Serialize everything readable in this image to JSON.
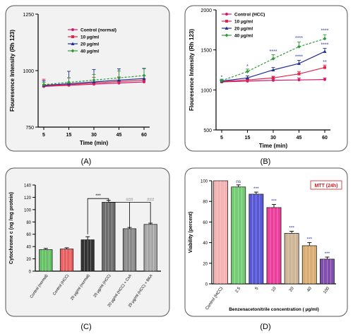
{
  "chart_data": [
    {
      "panel": "(A)",
      "type": "line",
      "title": "",
      "xlabel": "Time (min)",
      "ylabel": "Flouresence Intensity (Rh 123)",
      "x": [
        5,
        15,
        30,
        45,
        60
      ],
      "x_ticks": [
        "5",
        "15",
        "30",
        "45",
        "60"
      ],
      "y_ticks": [
        "750",
        "1000",
        "1250"
      ],
      "ylim": [
        750,
        1250
      ],
      "legend_position": "top-right",
      "series": [
        {
          "name": "Control (normal)",
          "color": "#d21b6e",
          "values": [
            930,
            935,
            940,
            945,
            950
          ],
          "err": [
            0,
            8,
            10,
            12,
            14
          ]
        },
        {
          "name": "10 µg/ml",
          "color": "#e0244a",
          "values": [
            932,
            938,
            945,
            952,
            958
          ],
          "err": [
            30,
            30,
            25,
            20,
            20
          ]
        },
        {
          "name": "20 µg/ml",
          "color": "#1f2f95",
          "values": [
            935,
            942,
            950,
            958,
            965
          ],
          "err": [
            20,
            55,
            55,
            50,
            45
          ]
        },
        {
          "name": "40 µg/ml",
          "color": "#2e9a3a",
          "values": [
            938,
            948,
            958,
            968,
            978
          ],
          "err": [
            10,
            20,
            25,
            30,
            30
          ]
        }
      ]
    },
    {
      "panel": "(B)",
      "type": "line",
      "title": "",
      "xlabel": "Time (min)",
      "ylabel": "Flouresence Intensity (Rh 123)",
      "x": [
        5,
        15,
        30,
        45,
        60
      ],
      "x_ticks": [
        "5",
        "15",
        "30",
        "45",
        "60"
      ],
      "y_ticks": [
        "500",
        "1000",
        "1500",
        "2000"
      ],
      "ylim": [
        500,
        2000
      ],
      "legend_position": "top-left",
      "series": [
        {
          "name": "Control (HCC)",
          "color": "#d21b6e",
          "values": [
            1100,
            1110,
            1120,
            1125,
            1130
          ],
          "err": [
            15,
            15,
            20,
            25,
            20
          ]
        },
        {
          "name": "10 µg/ml",
          "color": "#e0244a",
          "values": [
            1105,
            1125,
            1150,
            1200,
            1280
          ],
          "err": [
            15,
            15,
            20,
            30,
            30
          ]
        },
        {
          "name": "20 µg/ml",
          "color": "#1f2f95",
          "values": [
            1110,
            1150,
            1250,
            1330,
            1480
          ],
          "err": [
            15,
            25,
            30,
            40,
            40
          ]
        },
        {
          "name": "40 µg/ml",
          "color": "#2e9a3a",
          "values": [
            1115,
            1230,
            1390,
            1540,
            1640
          ],
          "err": [
            20,
            30,
            50,
            60,
            50
          ]
        }
      ],
      "annotations": [
        {
          "x": 5,
          "y": 1140,
          "text": "*"
        },
        {
          "x": 15,
          "y": 1275,
          "text": "*"
        },
        {
          "x": 30,
          "y": 1460,
          "text": "****"
        },
        {
          "x": 45,
          "y": 1630,
          "text": "****"
        },
        {
          "x": 45,
          "y": 1395,
          "text": "****"
        },
        {
          "x": 60,
          "y": 1720,
          "text": "****"
        },
        {
          "x": 60,
          "y": 1545,
          "text": "****"
        },
        {
          "x": 60,
          "y": 1330,
          "text": "**"
        }
      ]
    },
    {
      "panel": "(C)",
      "type": "bar",
      "title": "",
      "xlabel": "",
      "ylabel": "Cytochrome c (ng /mg protein)",
      "categories": [
        "Control (normal)",
        "Control (HCC)",
        "20 µg/ml (normal)",
        "20 µg/ml (HCC)",
        "20 µg/ml (HCC) + CsA",
        "20 µg/ml (HCC) + BKA"
      ],
      "values": [
        35,
        36,
        51,
        112,
        69,
        76
      ],
      "err": [
        2,
        2,
        5,
        3,
        2,
        2
      ],
      "y_ticks": [
        "0",
        "20",
        "40",
        "60",
        "80",
        "100",
        "120",
        "140"
      ],
      "ylim": [
        0,
        140
      ],
      "colors": [
        "#4db84d",
        "#e84545",
        "#111111",
        "#555555",
        "#777777",
        "#999999"
      ],
      "annotations": [
        "***",
        "###",
        "###"
      ]
    },
    {
      "panel": "(D)",
      "type": "bar",
      "title": "MTT (24h)",
      "xlabel": "Benzenacetonitrile concentration ( µg/ml)",
      "ylabel": "Viability (percent)",
      "categories": [
        "Control (HCC)",
        "2.5",
        "5",
        "10",
        "20",
        "40",
        "100"
      ],
      "values": [
        100,
        94,
        87,
        74,
        49,
        37,
        24
      ],
      "err": [
        0,
        2,
        2,
        3,
        2,
        3,
        2
      ],
      "y_ticks": [
        "0",
        "20",
        "40",
        "60",
        "80",
        "100"
      ],
      "ylim": [
        0,
        100
      ],
      "colors": [
        "#f2a5a5",
        "#5cc35c",
        "#3b3bcf",
        "#e81c8a",
        "#c4a882",
        "#d4a05a",
        "#6a2f9e"
      ],
      "annotations": [
        "",
        "ns",
        "***",
        "***",
        "***",
        "***",
        "***"
      ]
    }
  ],
  "labels": {
    "a": "(A)",
    "b": "(B)",
    "c": "(C)",
    "d": "(D)"
  }
}
